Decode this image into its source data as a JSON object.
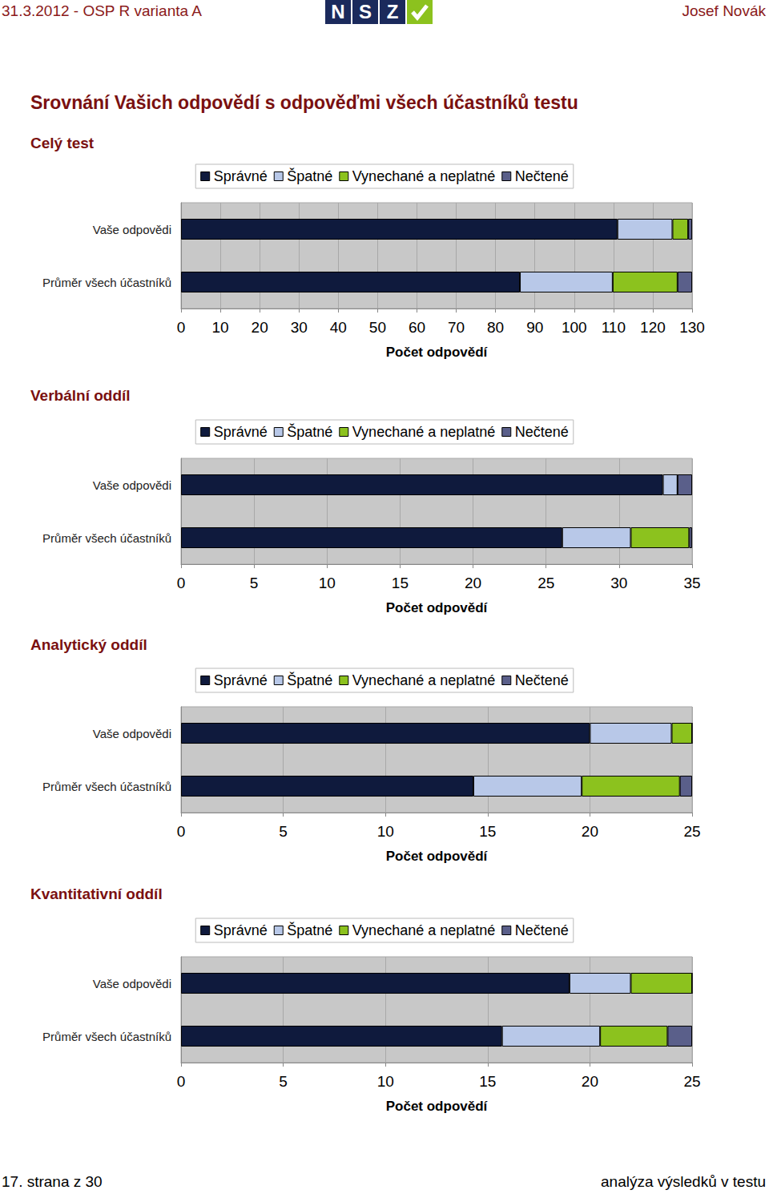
{
  "header": {
    "left": "31.3.2012 - OSP R varianta A",
    "logo": [
      "N",
      "S",
      "Z"
    ],
    "right": "Josef Novák"
  },
  "title": "Srovnání Vašich odpovědí s odpověďmi všech účastníků testu",
  "chart_data": [
    {
      "type": "bar",
      "title": "Celý test",
      "orientation": "horizontal",
      "stacked": true,
      "grid": true,
      "legend": "top",
      "x_label": "Počet odpovědí",
      "categories": [
        "Vaše odpovědi",
        "Průměr všech účastníků"
      ],
      "series": [
        {
          "name": "Správné",
          "color": "#0f1a3d",
          "values": [
            111,
            86.2
          ]
        },
        {
          "name": "Špatné",
          "color": "#b8c8e8",
          "values": [
            14,
            23.6
          ]
        },
        {
          "name": "Vynechané a neplatné",
          "color": "#8cc21e",
          "values": [
            4,
            16.5
          ]
        },
        {
          "name": "Nečtené",
          "color": "#5a5f8a",
          "values": [
            1,
            3.7
          ]
        }
      ],
      "xlim": [
        0,
        130
      ],
      "xticks": [
        0,
        10,
        20,
        30,
        40,
        50,
        60,
        70,
        80,
        90,
        100,
        110,
        120,
        130
      ]
    },
    {
      "type": "bar",
      "title": "Verbální oddíl",
      "orientation": "horizontal",
      "stacked": true,
      "grid": true,
      "legend": "top",
      "x_label": "Počet odpovědí",
      "categories": [
        "Vaše odpovědi",
        "Průměr všech účastníků"
      ],
      "series": [
        {
          "name": "Správné",
          "color": "#0f1a3d",
          "values": [
            33,
            26.1
          ]
        },
        {
          "name": "Špatné",
          "color": "#b8c8e8",
          "values": [
            1,
            4.7
          ]
        },
        {
          "name": "Vynechané a neplatné",
          "color": "#8cc21e",
          "values": [
            0,
            4
          ]
        },
        {
          "name": "Nečtené",
          "color": "#5a5f8a",
          "values": [
            1,
            0.2
          ]
        }
      ],
      "xlim": [
        0,
        35
      ],
      "xticks": [
        0,
        5,
        10,
        15,
        20,
        25,
        30,
        35
      ]
    },
    {
      "type": "bar",
      "title": "Analytický oddíl",
      "orientation": "horizontal",
      "stacked": true,
      "grid": true,
      "legend": "top",
      "x_label": "Počet odpovědí",
      "categories": [
        "Vaše odpovědi",
        "Průměr všech účastníků"
      ],
      "series": [
        {
          "name": "Správné",
          "color": "#0f1a3d",
          "values": [
            20,
            14.3
          ]
        },
        {
          "name": "Špatné",
          "color": "#b8c8e8",
          "values": [
            4,
            5.3
          ]
        },
        {
          "name": "Vynechané a neplatné",
          "color": "#8cc21e",
          "values": [
            1,
            4.8
          ]
        },
        {
          "name": "Nečtené",
          "color": "#5a5f8a",
          "values": [
            0,
            0.6
          ]
        }
      ],
      "xlim": [
        0,
        25
      ],
      "xticks": [
        0,
        5,
        10,
        15,
        20,
        25
      ]
    },
    {
      "type": "bar",
      "title": "Kvantitativní oddíl",
      "orientation": "horizontal",
      "stacked": true,
      "grid": true,
      "legend": "top",
      "x_label": "Počet odpovědí",
      "categories": [
        "Vaše odpovědi",
        "Průměr všech účastníků"
      ],
      "series": [
        {
          "name": "Správné",
          "color": "#0f1a3d",
          "values": [
            19,
            15.7
          ]
        },
        {
          "name": "Špatné",
          "color": "#b8c8e8",
          "values": [
            3,
            4.8
          ]
        },
        {
          "name": "Vynechané a neplatné",
          "color": "#8cc21e",
          "values": [
            3,
            3.3
          ]
        },
        {
          "name": "Nečtené",
          "color": "#5a5f8a",
          "values": [
            0,
            1.2
          ]
        }
      ],
      "xlim": [
        0,
        25
      ],
      "xticks": [
        0,
        5,
        10,
        15,
        20,
        25
      ]
    }
  ],
  "footer": {
    "left": "17. strana z 30",
    "right": "analýza výsledků v testu"
  }
}
